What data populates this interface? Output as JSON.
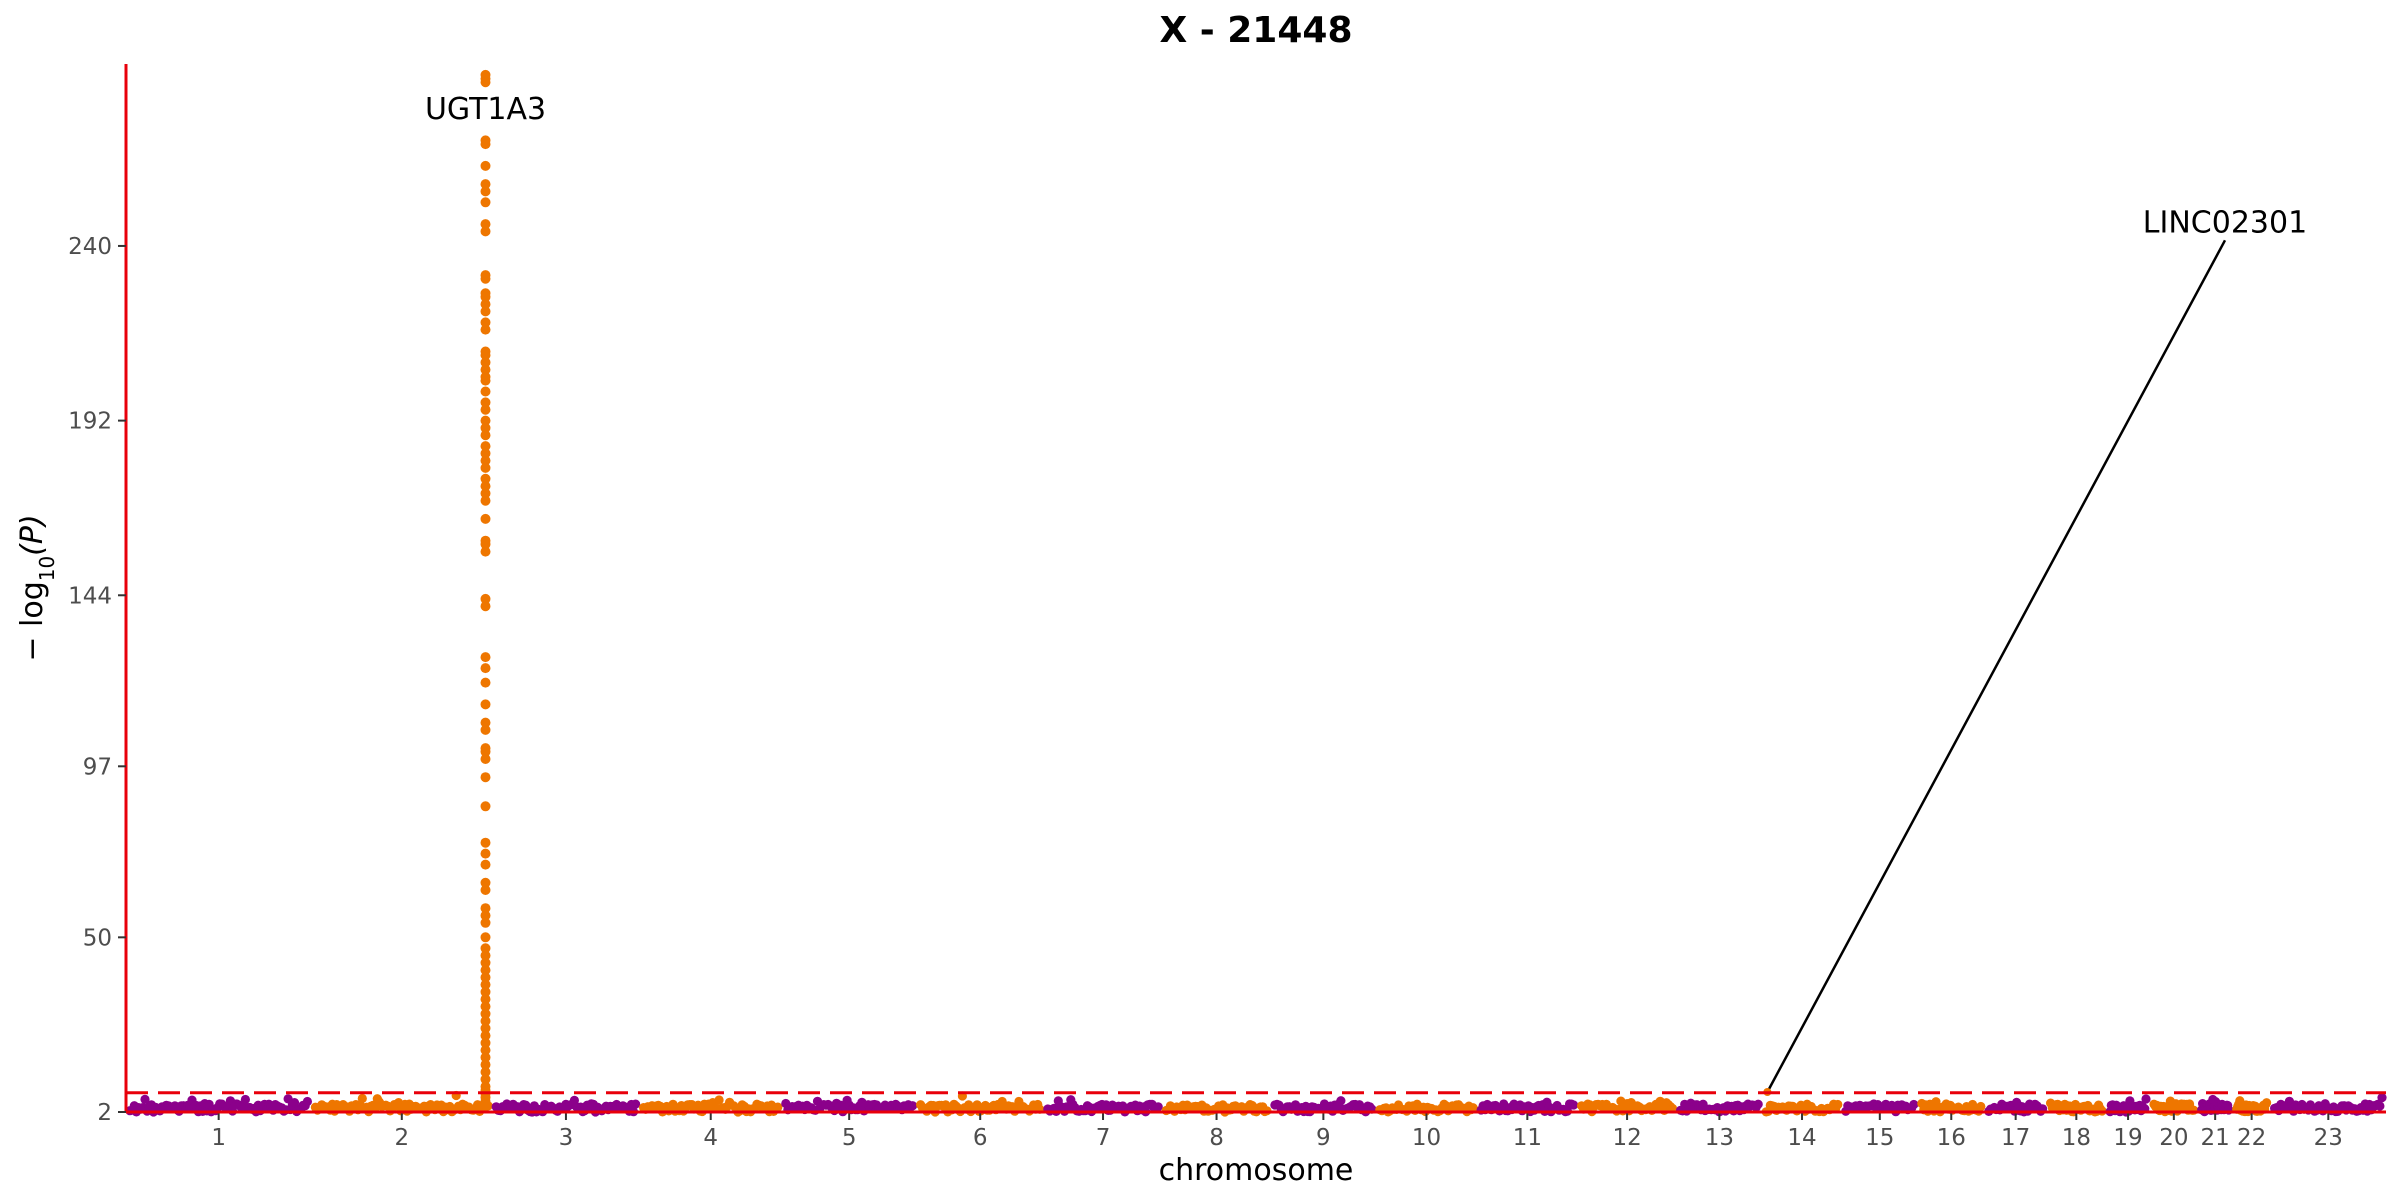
{
  "chart_data": {
    "type": "scatter",
    "title": "X - 21448",
    "xlabel": "chromosome",
    "ylabel_main": "− log",
    "ylabel_sub": "10",
    "ylabel_tail": "(P)",
    "ylim": [
      2,
      290
    ],
    "y_ticks": [
      2,
      50,
      97,
      144,
      192,
      240
    ],
    "grid": false,
    "legend": "none",
    "colors": {
      "odd": "#8B008B",
      "even": "#EE7600",
      "axis": "#E8000B",
      "threshold": "#E8000B",
      "connector": "#000000"
    },
    "threshold": 7.3,
    "chromosomes": [
      {
        "label": "1",
        "length": 249
      },
      {
        "label": "2",
        "length": 243
      },
      {
        "label": "3",
        "length": 198
      },
      {
        "label": "4",
        "length": 191
      },
      {
        "label": "5",
        "length": 181
      },
      {
        "label": "6",
        "length": 171
      },
      {
        "label": "7",
        "length": 159
      },
      {
        "label": "8",
        "length": 146
      },
      {
        "label": "9",
        "length": 141
      },
      {
        "label": "10",
        "length": 136
      },
      {
        "label": "11",
        "length": 135
      },
      {
        "label": "12",
        "length": 133
      },
      {
        "label": "13",
        "length": 115
      },
      {
        "label": "14",
        "length": 107
      },
      {
        "label": "15",
        "length": 102
      },
      {
        "label": "16",
        "length": 90
      },
      {
        "label": "17",
        "length": 83
      },
      {
        "label": "18",
        "length": 80
      },
      {
        "label": "19",
        "length": 59
      },
      {
        "label": "20",
        "length": 64
      },
      {
        "label": "21",
        "length": 47
      },
      {
        "label": "22",
        "length": 51
      },
      {
        "label": "23",
        "length": 155
      }
    ],
    "peak": {
      "chromosome": "2",
      "position": 234,
      "values": [
        287,
        286,
        285,
        269,
        268,
        262,
        257,
        255,
        252,
        246,
        244,
        232,
        231,
        227,
        226,
        224,
        222,
        219,
        217,
        211,
        210,
        208,
        206,
        204,
        203,
        200,
        197,
        195,
        192,
        190,
        188,
        185,
        183,
        181,
        179,
        176,
        174,
        172,
        170,
        165,
        159,
        158,
        156,
        143,
        141,
        127,
        124,
        120,
        114,
        109,
        107,
        102,
        101,
        99,
        94,
        86,
        76,
        73,
        70,
        65,
        63,
        58,
        56,
        54,
        50,
        47,
        45,
        43,
        41,
        39,
        37,
        35,
        33,
        31,
        29,
        27,
        25,
        23,
        21,
        19,
        17,
        15,
        13,
        11,
        9,
        8,
        7,
        6,
        5,
        4
      ]
    },
    "annotations": [
      {
        "label": "UGT1A3",
        "chromosome": "2",
        "position": 234,
        "value": 287
      },
      {
        "label": "LINC02301",
        "chromosome": "14",
        "position": 7,
        "value": 7.5,
        "label_value": 241
      }
    ]
  }
}
